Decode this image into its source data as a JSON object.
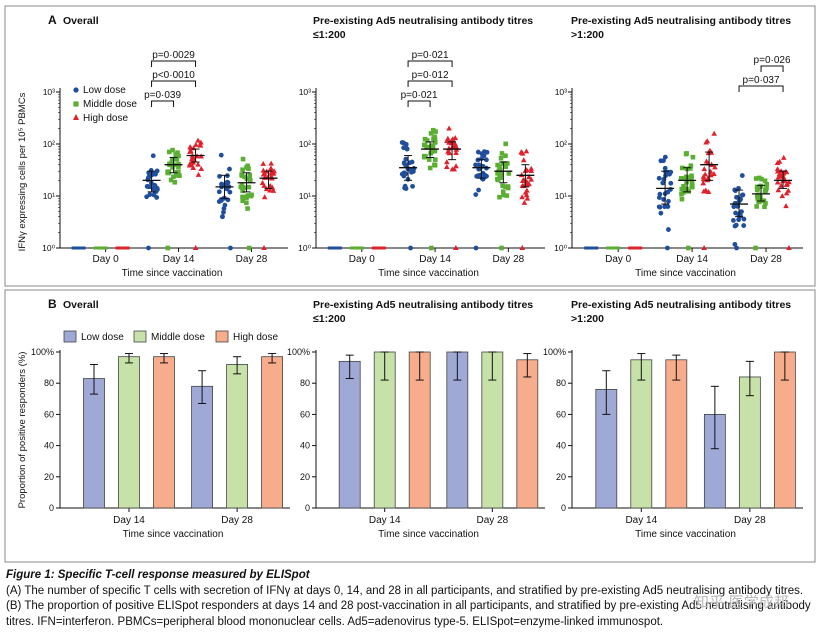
{
  "figure": {
    "caption_title": "Figure 1: Specific T-cell response measured by ELISpot",
    "caption_a": "(A) The number of specific T cells with secretion of IFNγ at days 0, 14, and 28 in all participants, and stratified by pre-existing Ad5 neutralising antibody titres.",
    "caption_b": "(B) The proportion of positive ELISpot responders at days 14 and 28 post-vaccination in all participants, and stratified by pre-existing Ad5 neutralising antibody titres. IFN=interferon. PBMCs=peripheral blood mononuclear cells. Ad5=adenovirus type-5. ELISpot=enzyme-linked immunospot.",
    "watermark": "知乎 医学成邦",
    "colors": {
      "low": "#1f4e9c",
      "middle": "#5aae32",
      "high": "#e0202a",
      "low_bar": "#9fa9d6",
      "middle_bar": "#c6e2a8",
      "high_bar": "#f7ad8c",
      "frame": "#888888"
    }
  },
  "chart_data": [
    {
      "panel": "A",
      "type": "scatter",
      "title": "Overall",
      "ylabel": "IFNγ expressing cells per 10⁵ PBMCs",
      "xlabel": "Time since vaccination",
      "yscale": "log",
      "ylim": [
        1,
        1000
      ],
      "yticks": [
        "10⁰",
        "10¹",
        "10²",
        "10³"
      ],
      "categories": [
        "Day 0",
        "Day 14",
        "Day 28"
      ],
      "legend": [
        "Low dose",
        "Middle dose",
        "High dose"
      ],
      "legend_position": "top-left",
      "groups": [
        {
          "day": "Day 0",
          "series": "Low dose",
          "median": 1,
          "iqr": [
            1,
            1
          ]
        },
        {
          "day": "Day 0",
          "series": "Middle dose",
          "median": 1,
          "iqr": [
            1,
            1
          ]
        },
        {
          "day": "Day 0",
          "series": "High dose",
          "median": 1,
          "iqr": [
            1,
            1
          ]
        },
        {
          "day": "Day 14",
          "series": "Low dose",
          "median": 20,
          "iqr": [
            12,
            30
          ]
        },
        {
          "day": "Day 14",
          "series": "Middle dose",
          "median": 40,
          "iqr": [
            28,
            55
          ]
        },
        {
          "day": "Day 14",
          "series": "High dose",
          "median": 60,
          "iqr": [
            45,
            80
          ]
        },
        {
          "day": "Day 28",
          "series": "Low dose",
          "median": 15,
          "iqr": [
            9,
            25
          ]
        },
        {
          "day": "Day 28",
          "series": "Middle dose",
          "median": 18,
          "iqr": [
            12,
            28
          ]
        },
        {
          "day": "Day 28",
          "series": "High dose",
          "median": 22,
          "iqr": [
            14,
            30
          ]
        }
      ],
      "annotations": [
        {
          "text": "p=0·039",
          "from": "Low dose",
          "to": "Middle dose",
          "day": "Day 14"
        },
        {
          "text": "p<0·0010",
          "from": "Low dose",
          "to": "High dose",
          "day": "Day 14"
        },
        {
          "text": "p=0·0029",
          "from": "Low dose",
          "to": "High dose",
          "day": "Day 14"
        }
      ]
    },
    {
      "panel": "A",
      "type": "scatter",
      "title": "Pre-existing Ad5 neutralising antibody titres ≤1:200",
      "xlabel": "Time since vaccination",
      "yscale": "log",
      "ylim": [
        1,
        1000
      ],
      "categories": [
        "Day 0",
        "Day 14",
        "Day 28"
      ],
      "groups": [
        {
          "day": "Day 0",
          "series": "Low dose",
          "median": 1,
          "iqr": [
            1,
            1
          ]
        },
        {
          "day": "Day 0",
          "series": "Middle dose",
          "median": 1,
          "iqr": [
            1,
            1
          ]
        },
        {
          "day": "Day 0",
          "series": "High dose",
          "median": 1,
          "iqr": [
            1,
            1
          ]
        },
        {
          "day": "Day 14",
          "series": "Low dose",
          "median": 35,
          "iqr": [
            20,
            60
          ]
        },
        {
          "day": "Day 14",
          "series": "Middle dose",
          "median": 80,
          "iqr": [
            55,
            110
          ]
        },
        {
          "day": "Day 14",
          "series": "High dose",
          "median": 80,
          "iqr": [
            50,
            110
          ]
        },
        {
          "day": "Day 28",
          "series": "Low dose",
          "median": 35,
          "iqr": [
            22,
            50
          ]
        },
        {
          "day": "Day 28",
          "series": "Middle dose",
          "median": 30,
          "iqr": [
            18,
            45
          ]
        },
        {
          "day": "Day 28",
          "series": "High dose",
          "median": 25,
          "iqr": [
            15,
            40
          ]
        }
      ],
      "annotations": [
        {
          "text": "p=0·021",
          "from": "Low dose",
          "to": "Middle dose",
          "day": "Day 14"
        },
        {
          "text": "p=0·012",
          "from": "Low dose",
          "to": "High dose",
          "day": "Day 14"
        },
        {
          "text": "p=0·021",
          "from": "Low dose",
          "to": "High dose",
          "day": "Day 14"
        }
      ]
    },
    {
      "panel": "A",
      "type": "scatter",
      "title": "Pre-existing Ad5 neutralising antibody titres >1:200",
      "xlabel": "Time since vaccination",
      "yscale": "log",
      "ylim": [
        1,
        1000
      ],
      "categories": [
        "Day 0",
        "Day 14",
        "Day 28"
      ],
      "groups": [
        {
          "day": "Day 0",
          "series": "Low dose",
          "median": 1,
          "iqr": [
            1,
            1
          ]
        },
        {
          "day": "Day 0",
          "series": "Middle dose",
          "median": 1,
          "iqr": [
            1,
            1
          ]
        },
        {
          "day": "Day 0",
          "series": "High dose",
          "median": 1,
          "iqr": [
            1,
            1
          ]
        },
        {
          "day": "Day 14",
          "series": "Low dose",
          "median": 14,
          "iqr": [
            7,
            30
          ]
        },
        {
          "day": "Day 14",
          "series": "Middle dose",
          "median": 20,
          "iqr": [
            12,
            35
          ]
        },
        {
          "day": "Day 14",
          "series": "High dose",
          "median": 40,
          "iqr": [
            20,
            70
          ]
        },
        {
          "day": "Day 28",
          "series": "Low dose",
          "median": 7,
          "iqr": [
            4,
            13
          ]
        },
        {
          "day": "Day 28",
          "series": "Middle dose",
          "median": 11,
          "iqr": [
            8,
            16
          ]
        },
        {
          "day": "Day 28",
          "series": "High dose",
          "median": 20,
          "iqr": [
            14,
            30
          ]
        }
      ],
      "annotations": [
        {
          "text": "p=0·037",
          "from": "Low dose",
          "to": "High dose",
          "day": "Day 28"
        },
        {
          "text": "p=0·026",
          "from": "Middle dose",
          "to": "High dose",
          "day": "Day 28"
        }
      ]
    },
    {
      "panel": "B",
      "type": "bar",
      "title": "Overall",
      "ylabel": "Proportion of positive responders (%)",
      "xlabel": "Time since vaccination",
      "ylim": [
        0,
        100
      ],
      "yticks": [
        "0",
        "20",
        "40",
        "60",
        "80",
        "100%"
      ],
      "categories": [
        "Day 14",
        "Day 28"
      ],
      "legend": [
        "Low dose",
        "Middle dose",
        "High dose"
      ],
      "legend_position": "top-left",
      "series": [
        {
          "name": "Low dose",
          "values": [
            83,
            78
          ],
          "ci_low": [
            73,
            67
          ],
          "ci_high": [
            92,
            88
          ]
        },
        {
          "name": "Middle dose",
          "values": [
            97,
            92
          ],
          "ci_low": [
            93,
            86
          ],
          "ci_high": [
            99,
            97
          ]
        },
        {
          "name": "High dose",
          "values": [
            97,
            97
          ],
          "ci_low": [
            93,
            93
          ],
          "ci_high": [
            99,
            99
          ]
        }
      ]
    },
    {
      "panel": "B",
      "type": "bar",
      "title": "Pre-existing Ad5 neutralising antibody titres ≤1:200",
      "xlabel": "Time since vaccination",
      "ylim": [
        0,
        100
      ],
      "categories": [
        "Day 14",
        "Day 28"
      ],
      "series": [
        {
          "name": "Low dose",
          "values": [
            94,
            100
          ],
          "ci_low": [
            83,
            82
          ],
          "ci_high": [
            98,
            100
          ]
        },
        {
          "name": "Middle dose",
          "values": [
            100,
            100
          ],
          "ci_low": [
            82,
            82
          ],
          "ci_high": [
            100,
            100
          ]
        },
        {
          "name": "High dose",
          "values": [
            100,
            95
          ],
          "ci_low": [
            82,
            84
          ],
          "ci_high": [
            100,
            99
          ]
        }
      ]
    },
    {
      "panel": "B",
      "type": "bar",
      "title": "Pre-existing Ad5 neutralising antibody titres >1:200",
      "xlabel": "Time since vaccination",
      "ylim": [
        0,
        100
      ],
      "categories": [
        "Day 14",
        "Day 28"
      ],
      "series": [
        {
          "name": "Low dose",
          "values": [
            76,
            60
          ],
          "ci_low": [
            60,
            38
          ],
          "ci_high": [
            88,
            78
          ]
        },
        {
          "name": "Middle dose",
          "values": [
            95,
            84
          ],
          "ci_low": [
            82,
            72
          ],
          "ci_high": [
            99,
            94
          ]
        },
        {
          "name": "High dose",
          "values": [
            95,
            100
          ],
          "ci_low": [
            82,
            82
          ],
          "ci_high": [
            98,
            100
          ]
        }
      ]
    }
  ]
}
